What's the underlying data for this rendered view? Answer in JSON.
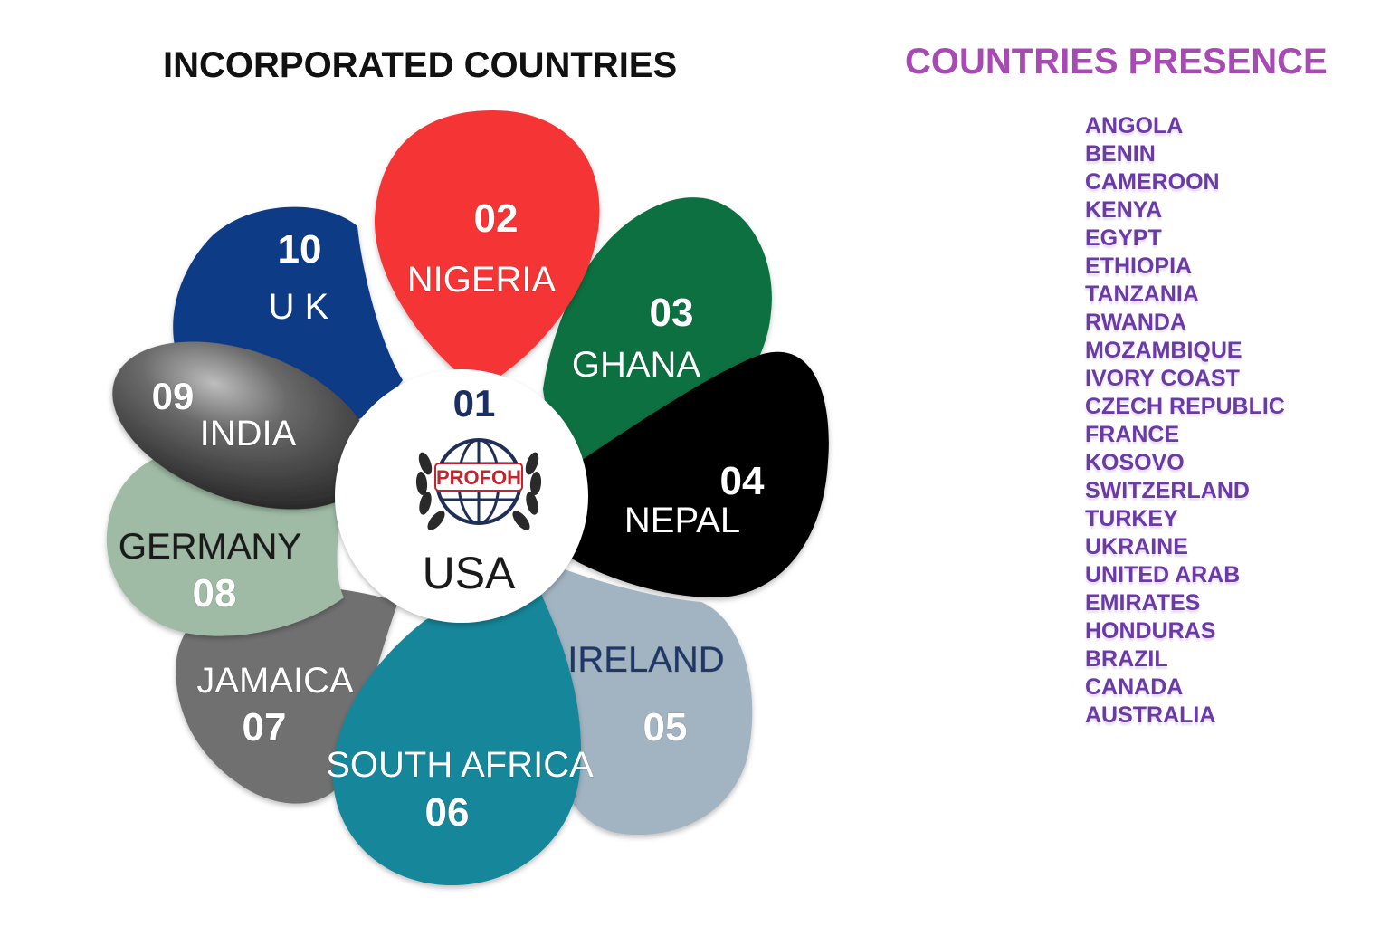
{
  "left_title": "INCORPORATED COUNTRIES",
  "right_title": "COUNTRIES PRESENCE",
  "center": {
    "number": "01",
    "country": "USA",
    "logo_text": "PROFOH",
    "number_color": "#1c2f63"
  },
  "petals": [
    {
      "number": "02",
      "country": "NIGERIA",
      "color": "#f53535",
      "text_color": "#ffffff"
    },
    {
      "number": "03",
      "country": "GHANA",
      "color": "#0b7040",
      "text_color": "#ffffff"
    },
    {
      "number": "04",
      "country": "NEPAL",
      "color": "#000000",
      "text_color": "#ffffff"
    },
    {
      "number": "05",
      "country": "IRELAND",
      "color": "#a2b4c2",
      "text_color": "#ffffff",
      "name_color": "#1e3766"
    },
    {
      "number": "06",
      "country": "SOUTH AFRICA",
      "color": "#13869a",
      "text_color": "#ffffff"
    },
    {
      "number": "07",
      "country": "JAMAICA",
      "color": "#707070",
      "text_color": "#ffffff"
    },
    {
      "number": "08",
      "country": "GERMANY",
      "color": "#9fbba5",
      "text_color": "#ffffff",
      "name_color": "#1a1a1a"
    },
    {
      "number": "09",
      "country": "INDIA",
      "color": "#4d4d4d",
      "text_color": "#ffffff"
    },
    {
      "number": "10",
      "country": "U K",
      "color": "#0a3a86",
      "text_color": "#ffffff"
    }
  ],
  "presence_countries": [
    "ANGOLA",
    "BENIN",
    "CAMEROON",
    "KENYA",
    "EGYPT",
    "ETHIOPIA",
    "TANZANIA",
    "RWANDA",
    "MOZAMBIQUE",
    "IVORY COAST",
    "CZECH REPUBLIC",
    "FRANCE",
    "KOSOVO",
    "SWITZERLAND",
    "TURKEY",
    " UKRAINE",
    "UNITED ARAB",
    "EMIRATES",
    " HONDURAS",
    "BRAZIL",
    "CANADA",
    "AUSTRALIA"
  ]
}
